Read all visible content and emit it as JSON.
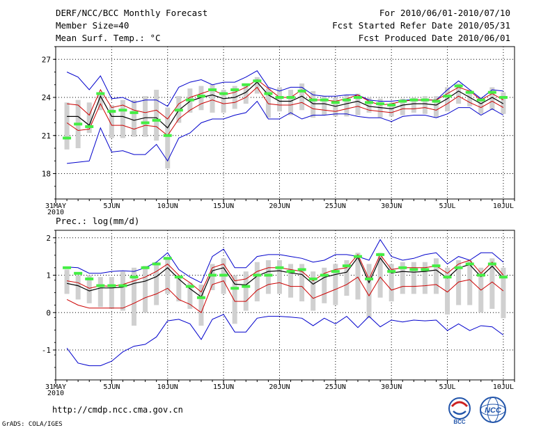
{
  "header": {
    "title": "DERF/NCC/BCC Monthly Forecast",
    "member": "Member Size=40",
    "variable": "Mean Surf. Temp.: °C",
    "period": "For 2010/06/01-2010/07/10",
    "started": "Fcst Started Refer Date 2010/05/31",
    "produced": "Fcst Produced Date 2010/06/01"
  },
  "footer": {
    "url": "http://cmdp.ncc.cma.gov.cn",
    "grads": "GrADS: COLA/IGES",
    "logo1": "BCC",
    "logo2": "NCC"
  },
  "chart_data": [
    {
      "type": "line",
      "title": "Mean Surf. Temp.: °C",
      "x": [
        1,
        2,
        3,
        4,
        5,
        6,
        7,
        8,
        9,
        10,
        11,
        12,
        13,
        14,
        15,
        16,
        17,
        18,
        19,
        20,
        21,
        22,
        23,
        24,
        25,
        26,
        27,
        28,
        29,
        30,
        31,
        32,
        33,
        34,
        35,
        36,
        37,
        38,
        39,
        40
      ],
      "x_ticks": [
        {
          "x": 0,
          "label": "31MAY",
          "sub": "2010"
        },
        {
          "x": 5,
          "label": "5JUN"
        },
        {
          "x": 10,
          "label": "10JUN"
        },
        {
          "x": 15,
          "label": "15JUN"
        },
        {
          "x": 20,
          "label": "20JUN"
        },
        {
          "x": 25,
          "label": "25JUN"
        },
        {
          "x": 30,
          "label": "30JUN"
        },
        {
          "x": 35,
          "label": "5JUL"
        },
        {
          "x": 40,
          "label": "10JUL"
        }
      ],
      "xlim": [
        0,
        41
      ],
      "ylim": [
        16,
        28
      ],
      "y_ticks": [
        18,
        21,
        24,
        27
      ],
      "series": [
        {
          "name": "max",
          "color": "#0000cc",
          "values": [
            26,
            25.6,
            24.6,
            25.7,
            23.9,
            24,
            23.6,
            23.8,
            23.8,
            23.3,
            24.8,
            25.2,
            25.4,
            25,
            25.2,
            25.2,
            25.6,
            26.1,
            24.8,
            24.5,
            24.8,
            24.8,
            24.2,
            24.1,
            24.1,
            24.2,
            24.2,
            23.8,
            23.7,
            23.7,
            23.8,
            23.8,
            23.8,
            23.8,
            24.6,
            25.3,
            24.6,
            23.9,
            24.6,
            24.5
          ]
        },
        {
          "name": "upper",
          "color": "#cc0000",
          "values": [
            23.5,
            23.4,
            22.6,
            24.6,
            23.2,
            23.4,
            23,
            22.8,
            23,
            22.3,
            23.5,
            24,
            24.3,
            24.6,
            24.2,
            24.4,
            24.8,
            25.4,
            24.7,
            24,
            24,
            24.6,
            23.8,
            23.8,
            23.7,
            23.9,
            24.2,
            23.7,
            23.4,
            23.5,
            23.7,
            23.8,
            23.8,
            23.8,
            24.3,
            24.8,
            24.5,
            23.8,
            24.3,
            23.8
          ]
        },
        {
          "name": "mean",
          "color": "#000000",
          "values": [
            22.5,
            22.5,
            21.8,
            24.1,
            22.5,
            22.5,
            22.2,
            22.4,
            22.4,
            21.6,
            23,
            23.7,
            24,
            24.2,
            23.9,
            24,
            24.4,
            25.2,
            24.2,
            23.7,
            23.7,
            24.1,
            23.5,
            23.5,
            23.3,
            23.5,
            23.7,
            23.3,
            23.2,
            23.1,
            23.4,
            23.5,
            23.5,
            23.4,
            23.9,
            24.5,
            24,
            23.5,
            24,
            23.5
          ]
        },
        {
          "name": "lower",
          "color": "#cc0000",
          "values": [
            22,
            21.4,
            21.5,
            23.5,
            21.8,
            21.8,
            21.5,
            21.8,
            21.7,
            21,
            22.3,
            23,
            23.5,
            23.8,
            23.5,
            23.6,
            24,
            24.8,
            23.5,
            23.4,
            23.4,
            23.6,
            23.1,
            23,
            22.9,
            23.1,
            23.3,
            23,
            22.9,
            22.8,
            23.1,
            23.1,
            23.2,
            23,
            23.5,
            24.1,
            23.6,
            23.2,
            23.7,
            23.2
          ]
        },
        {
          "name": "min",
          "color": "#0000cc",
          "values": [
            18.8,
            18.9,
            19,
            21.6,
            19.7,
            19.8,
            19.5,
            19.5,
            20.3,
            19,
            20.8,
            21.2,
            22,
            22.3,
            22.3,
            22.6,
            22.8,
            23.7,
            22.3,
            22.3,
            22.8,
            22.3,
            22.6,
            22.6,
            22.7,
            22.7,
            22.5,
            22.4,
            22.4,
            22.1,
            22.5,
            22.6,
            22.6,
            22.4,
            22.7,
            23.2,
            23.2,
            22.6,
            23.1,
            22.6
          ]
        },
        {
          "name": "bar_top",
          "color": "#d0d0d0",
          "values": [
            23.6,
            23.8,
            23.6,
            24.4,
            23.4,
            23.8,
            23.8,
            24.1,
            24.6,
            23.2,
            24.1,
            24.7,
            24.9,
            25,
            24.6,
            24.9,
            25.1,
            25.6,
            24.7,
            24.8,
            24.6,
            25.1,
            24.5,
            24.1,
            24,
            24.2,
            24.3,
            24,
            23.9,
            23.6,
            23.9,
            24,
            24.1,
            24.1,
            24.8,
            25.1,
            24.6,
            24,
            24.8,
            24.4
          ]
        },
        {
          "name": "bar_bottom",
          "color": "#d0d0d0",
          "values": [
            19.9,
            20,
            21.2,
            23,
            20.8,
            20.8,
            20.9,
            20.9,
            20.6,
            18.4,
            22,
            22.8,
            23,
            22.8,
            22.8,
            23.1,
            23.5,
            24.3,
            22.4,
            22.9,
            22.6,
            23,
            22.4,
            22.6,
            22.5,
            22.5,
            22.6,
            22.8,
            22.4,
            22.5,
            22.6,
            22.8,
            22.7,
            22.4,
            22.9,
            23.5,
            23.3,
            22.7,
            23,
            22.7
          ]
        },
        {
          "name": "observed",
          "color": "#44ee44",
          "values": [
            20.8,
            21.9,
            21.7,
            24.3,
            22.9,
            23,
            22.8,
            22,
            22.2,
            21,
            23,
            23.8,
            24.1,
            24.6,
            24.3,
            24.6,
            25,
            25.3,
            24.3,
            24,
            24,
            24.5,
            23.8,
            23.8,
            23.6,
            23.8,
            24,
            23.6,
            23.5,
            23.4,
            23.7,
            23.8,
            23.8,
            23.7,
            24.1,
            24.9,
            24.4,
            23.8,
            24.4,
            24
          ]
        }
      ]
    },
    {
      "type": "line",
      "title": "Prec.: log(mm/d)",
      "x": [
        1,
        2,
        3,
        4,
        5,
        6,
        7,
        8,
        9,
        10,
        11,
        12,
        13,
        14,
        15,
        16,
        17,
        18,
        19,
        20,
        21,
        22,
        23,
        24,
        25,
        26,
        27,
        28,
        29,
        30,
        31,
        32,
        33,
        34,
        35,
        36,
        37,
        38,
        39,
        40
      ],
      "x_ticks": [
        {
          "x": 0,
          "label": "31MAY",
          "sub": "2010"
        },
        {
          "x": 5,
          "label": "5JUN"
        },
        {
          "x": 10,
          "label": "10JUN"
        },
        {
          "x": 15,
          "label": "15JUN"
        },
        {
          "x": 20,
          "label": "20JUN"
        },
        {
          "x": 25,
          "label": "25JUN"
        },
        {
          "x": 30,
          "label": "30JUN"
        },
        {
          "x": 35,
          "label": "5JUL"
        },
        {
          "x": 40,
          "label": "10JUL"
        }
      ],
      "xlim": [
        0,
        41
      ],
      "ylim": [
        -1.8,
        2.2
      ],
      "y_ticks": [
        -1,
        0,
        1,
        2
      ],
      "series": [
        {
          "name": "max",
          "color": "#0000cc",
          "values": [
            1.22,
            1.2,
            1.05,
            1.05,
            1.1,
            1.12,
            1.1,
            1.2,
            1.35,
            1.6,
            1.15,
            0.95,
            0.8,
            1.5,
            1.7,
            1.2,
            1.2,
            1.5,
            1.55,
            1.55,
            1.5,
            1.45,
            1.35,
            1.4,
            1.55,
            1.55,
            1.5,
            1.4,
            1.95,
            1.5,
            1.4,
            1.45,
            1.55,
            1.6,
            1.3,
            1.5,
            1.4,
            1.6,
            1.6,
            1.35
          ]
        },
        {
          "name": "upper",
          "color": "#cc0000",
          "values": [
            0.85,
            0.8,
            0.65,
            0.72,
            0.7,
            0.75,
            0.85,
            0.95,
            1.1,
            1.3,
            1,
            0.8,
            0.55,
            1.2,
            1.3,
            0.85,
            0.9,
            1.1,
            1.2,
            1.2,
            1.15,
            1.1,
            0.85,
            1.05,
            1.15,
            1.2,
            1.55,
            0.9,
            1.55,
            1.15,
            1.2,
            1.2,
            1.2,
            1.25,
            1.05,
            1.3,
            1.4,
            1.05,
            1.35,
            1.0
          ]
        },
        {
          "name": "mean",
          "color": "#000000",
          "values": [
            0.78,
            0.72,
            0.58,
            0.66,
            0.66,
            0.68,
            0.78,
            0.84,
            0.96,
            1.2,
            0.9,
            0.64,
            0.42,
            1.12,
            1.2,
            0.76,
            0.74,
            0.98,
            1.1,
            1.12,
            1.06,
            1.02,
            0.76,
            0.94,
            1.02,
            1.08,
            1.48,
            0.8,
            1.46,
            1.06,
            1.1,
            1.08,
            1.1,
            1.14,
            0.92,
            1.2,
            1.28,
            0.96,
            1.24,
            0.92
          ]
        },
        {
          "name": "lower",
          "color": "#cc0000",
          "values": [
            0.35,
            0.2,
            0.12,
            0.12,
            0.12,
            0.12,
            0.25,
            0.4,
            0.5,
            0.65,
            0.35,
            0.22,
            0.0,
            0.75,
            0.85,
            0.3,
            0.3,
            0.6,
            0.75,
            0.8,
            0.7,
            0.7,
            0.38,
            0.5,
            0.62,
            0.75,
            0.95,
            0.45,
            0.95,
            0.6,
            0.7,
            0.7,
            0.72,
            0.75,
            0.55,
            0.82,
            0.88,
            0.6,
            0.82,
            0.58
          ]
        },
        {
          "name": "min",
          "color": "#0000cc",
          "values": [
            -0.95,
            -1.35,
            -1.42,
            -1.42,
            -1.3,
            -1.05,
            -0.9,
            -0.85,
            -0.65,
            -0.22,
            -0.18,
            -0.3,
            -0.72,
            -0.18,
            -0.05,
            -0.52,
            -0.52,
            -0.15,
            -0.1,
            -0.1,
            -0.12,
            -0.15,
            -0.35,
            -0.15,
            -0.3,
            -0.1,
            -0.4,
            -0.1,
            -0.38,
            -0.2,
            -0.25,
            -0.2,
            -0.22,
            -0.2,
            -0.48,
            -0.3,
            -0.48,
            -0.35,
            -0.38,
            -0.6
          ]
        },
        {
          "name": "bar_top",
          "color": "#d0d0d0",
          "values": [
            1.15,
            1.0,
            1.0,
            0.95,
            0.95,
            1.1,
            1.2,
            1.25,
            1.35,
            1.45,
            1.0,
            0.8,
            0.75,
            1.3,
            1.45,
            1.0,
            1.1,
            1.35,
            1.4,
            1.4,
            1.3,
            1.3,
            1.1,
            1.2,
            1.3,
            1.4,
            1.6,
            1.3,
            1.6,
            1.3,
            1.35,
            1.35,
            1.35,
            1.45,
            1.2,
            1.4,
            1.4,
            1.2,
            1.45,
            1.2
          ]
        },
        {
          "name": "bar_bottom",
          "color": "#d0d0d0",
          "values": [
            0.5,
            0.35,
            0.25,
            0.15,
            0.1,
            0.05,
            -0.35,
            0.0,
            0.2,
            0.5,
            0.3,
            0.1,
            -0.35,
            0.6,
            0.5,
            -0.3,
            0.05,
            0.3,
            0.5,
            0.5,
            0.4,
            0.3,
            0.05,
            0.25,
            0.2,
            0.45,
            0.35,
            -0.15,
            0.4,
            0.3,
            0.5,
            0.5,
            0.5,
            0.5,
            -0.05,
            0.2,
            0.2,
            0.0,
            0.1,
            -0.15
          ]
        },
        {
          "name": "observed",
          "color": "#44ee44",
          "values": [
            1.2,
            1.05,
            0.9,
            0.72,
            0.72,
            0.72,
            0.95,
            1.2,
            1.3,
            1.45,
            0.95,
            0.7,
            0.4,
            1.0,
            1.0,
            0.65,
            0.7,
            1.0,
            1.0,
            1.2,
            1.1,
            1.15,
            0.9,
            1.0,
            1.1,
            1.25,
            1.5,
            0.9,
            1.55,
            1.1,
            1.2,
            1.15,
            1.15,
            1.25,
            0.95,
            1.2,
            1.3,
            1.0,
            1.3,
            0.95
          ]
        }
      ]
    }
  ]
}
